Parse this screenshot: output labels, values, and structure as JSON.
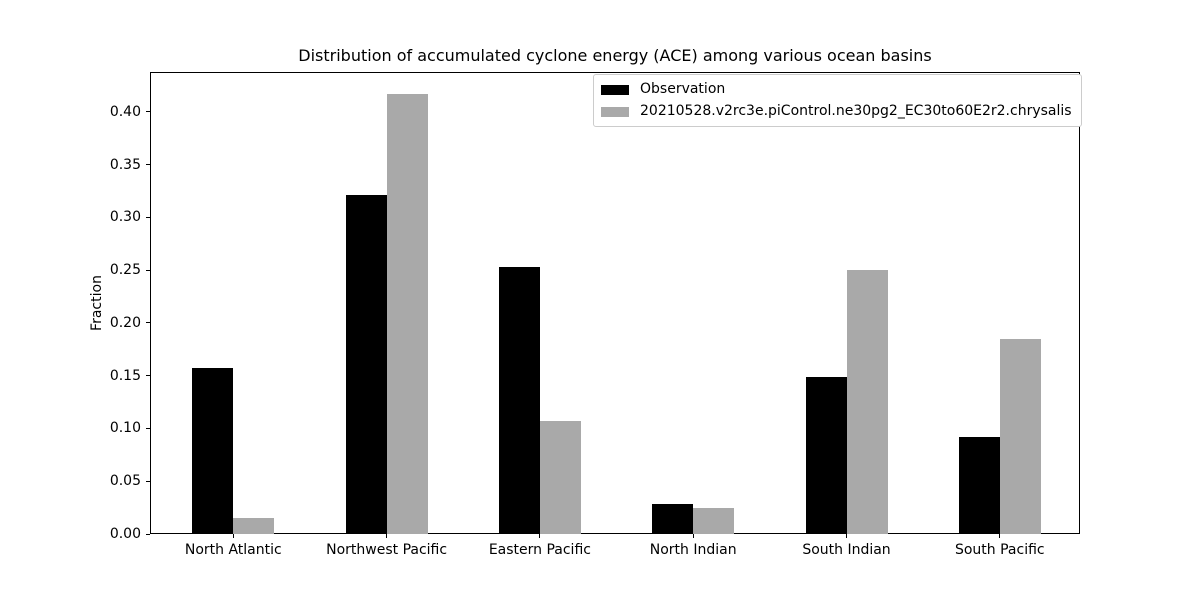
{
  "figure": {
    "background": "#ffffff"
  },
  "chart_data": {
    "type": "bar",
    "title": "Distribution of accumulated cyclone energy (ACE) among various ocean basins",
    "xlabel": "",
    "ylabel": "Fraction",
    "categories": [
      "North Atlantic",
      "Northwest Pacific",
      "Eastern Pacific",
      "North Indian",
      "South Indian",
      "South Pacific"
    ],
    "series": [
      {
        "name": "Observation",
        "color": "#000000",
        "values": [
          0.157,
          0.321,
          0.253,
          0.028,
          0.149,
          0.092
        ]
      },
      {
        "name": "20210528.v2rc3e.piControl.ne30pg2_EC30to60E2r2.chrysalis",
        "color": "#a9a9a9",
        "values": [
          0.015,
          0.417,
          0.107,
          0.025,
          0.25,
          0.185
        ]
      }
    ],
    "y_ticks": [
      0.0,
      0.05,
      0.1,
      0.15,
      0.2,
      0.25,
      0.3,
      0.35,
      0.4
    ],
    "ylim": [
      0,
      0.4377
    ],
    "grid": false,
    "legend": {
      "position": "upper right",
      "border_color": "#cccccc",
      "background": "#ffffff"
    }
  }
}
